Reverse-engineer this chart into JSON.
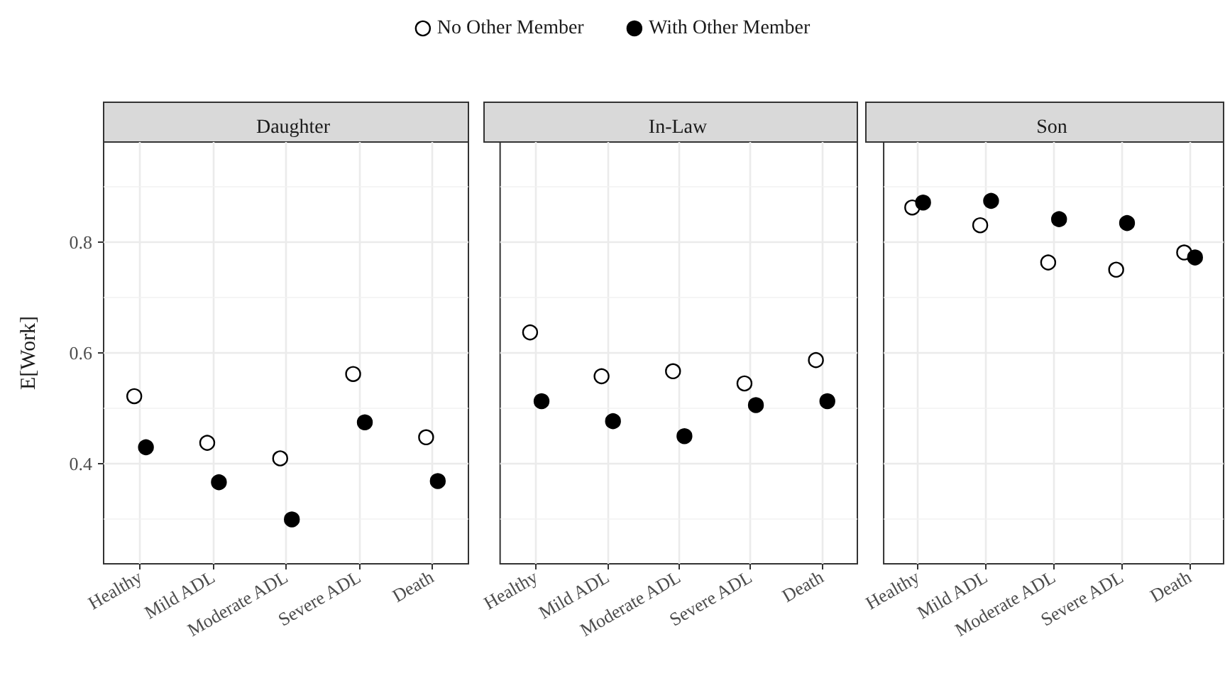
{
  "chart_data": [
    {
      "type": "scatter",
      "title": "Daughter",
      "ylabel": "E[Work]",
      "categories": [
        "Healthy",
        "Mild ADL",
        "Moderate ADL",
        "Severe ADL",
        "Death"
      ],
      "ylim": [
        0.22,
        0.98
      ],
      "yticks": [
        0.4,
        0.6,
        0.8
      ],
      "grid": true,
      "legend": "top",
      "marker": "circle",
      "series": [
        {
          "name": "No Other Member",
          "color": "#ffffff",
          "values": [
            0.522,
            0.438,
            0.41,
            0.562,
            0.448
          ]
        },
        {
          "name": "With Other Member",
          "color": "#000000",
          "values": [
            0.43,
            0.367,
            0.3,
            0.475,
            0.369
          ]
        }
      ]
    },
    {
      "type": "scatter",
      "title": "In-Law",
      "categories": [
        "Healthy",
        "Mild ADL",
        "Moderate ADL",
        "Severe ADL",
        "Death"
      ],
      "ylim": [
        0.22,
        0.98
      ],
      "yticks": [
        0.4,
        0.6,
        0.8
      ],
      "grid": true,
      "marker": "circle",
      "tick_labels": "x",
      "series": [
        {
          "color": "#ffffff",
          "values": [
            0.637,
            0.558,
            0.567,
            0.545,
            0.587
          ]
        },
        {
          "color": "#000000",
          "values": [
            0.513,
            0.477,
            0.45,
            0.506,
            0.513
          ]
        }
      ]
    },
    {
      "type": "scatter",
      "title": "Son",
      "categories": [
        "Healthy",
        "Mild ADL",
        "Moderate ADL",
        "Severe ADL",
        "Death"
      ],
      "ylim": [
        0.22,
        0.98
      ],
      "yticks": [
        0.4,
        0.6,
        0.8
      ],
      "grid": true,
      "marker": "circle",
      "tick_labels": "x",
      "series": [
        {
          "color": "#ffffff",
          "values": [
            0.862,
            0.83,
            0.763,
            0.75,
            0.781
          ]
        },
        {
          "color": "#000000",
          "values": [
            0.871,
            0.874,
            0.841,
            0.834,
            0.772
          ]
        }
      ]
    }
  ]
}
